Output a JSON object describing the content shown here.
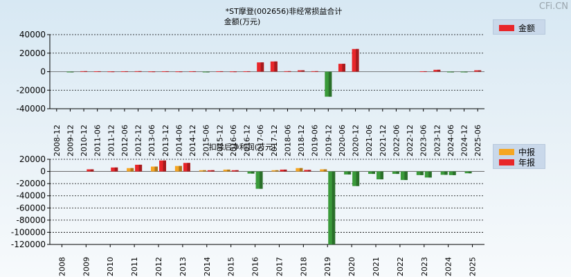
{
  "watermark": "CFi.CN",
  "colors": {
    "red": "#e8262a",
    "green": "#3a9a3a",
    "orange": "#f5a623",
    "axis": "#000000"
  },
  "chart_data": [
    {
      "type": "bar",
      "title": "*ST摩登(002656)非经常损益合计",
      "subtitle": "金额(万元)",
      "legend": [
        {
          "name": "金额",
          "color": "#e8262a"
        }
      ],
      "legend_position": "top-right",
      "ylim": [
        -40000,
        40000
      ],
      "yticks": [
        "40000",
        "20000",
        "0",
        "-20000",
        "-40000"
      ],
      "grid": true,
      "categories": [
        "2008-12",
        "2009-12",
        "2010-12",
        "2011-06",
        "2011-12",
        "2012-06",
        "2012-12",
        "2013-06",
        "2013-12",
        "2014-06",
        "2014-12",
        "2015-06",
        "2015-12",
        "2016-06",
        "2016-12",
        "2017-06",
        "2017-12",
        "2018-06",
        "2018-12",
        "2019-06",
        "2019-12",
        "2020-06",
        "2020-12",
        "2021-06",
        "2021-12",
        "2022-06",
        "2022-12",
        "2023-06",
        "2023-12",
        "2024-06",
        "2024-12",
        "2025-06"
      ],
      "series": [
        {
          "name": "金额",
          "values": [
            0,
            -300,
            500,
            400,
            300,
            400,
            500,
            300,
            400,
            300,
            400,
            -300,
            400,
            300,
            400,
            10000,
            11000,
            500,
            1500,
            500,
            -27000,
            8500,
            24500,
            0,
            0,
            0,
            0,
            400,
            2000,
            -500,
            -400,
            1500
          ]
        }
      ]
    },
    {
      "type": "bar",
      "title": "扣除后净利润(万元)",
      "legend": [
        {
          "name": "中报",
          "color": "#f5a623"
        },
        {
          "name": "年报",
          "color": "#e8262a"
        }
      ],
      "legend_position": "top-right",
      "ylim": [
        -120000,
        20000
      ],
      "yticks": [
        "20000",
        "0",
        "-20000",
        "-40000",
        "-60000",
        "-80000",
        "-100000",
        "-120000"
      ],
      "grid": true,
      "categories": [
        "2008",
        "2009",
        "2010",
        "2011",
        "2012",
        "2013",
        "2014",
        "2015",
        "2016",
        "2017",
        "2018",
        "2019",
        "2020",
        "2021",
        "2022",
        "2023",
        "2024",
        "2025"
      ],
      "series": [
        {
          "name": "中报",
          "values": [
            null,
            null,
            null,
            5500,
            8000,
            9000,
            2000,
            3000,
            -3500,
            2000,
            5500,
            3500,
            -5000,
            -4000,
            -4000,
            -6000,
            -5500,
            -3000
          ]
        },
        {
          "name": "年报",
          "values": [
            null,
            3500,
            6500,
            11000,
            18000,
            14000,
            2000,
            2000,
            -28500,
            3000,
            2500,
            -120000,
            -24000,
            -13000,
            -14000,
            -10000,
            -6000,
            null
          ]
        }
      ]
    }
  ]
}
